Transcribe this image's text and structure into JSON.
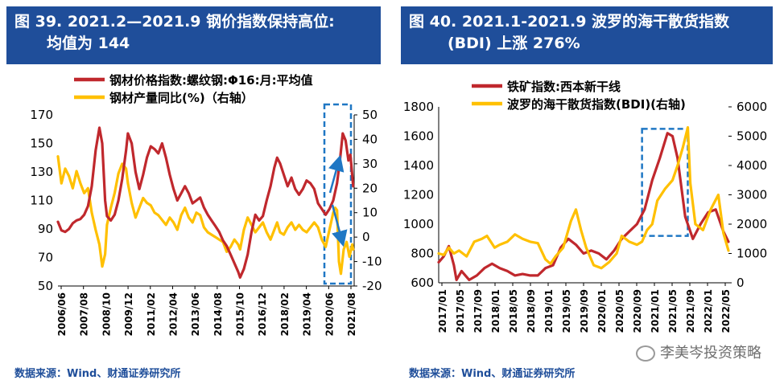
{
  "left": {
    "title_line1": "图 39. 2021.2—2021.9  钢价指数保持高位:",
    "title_line2": "均值为 144",
    "source": "数据来源：Wind、财通证券研究所",
    "legend": [
      "钢材价格指数:螺纹钢:Φ16:月:平均值",
      "钢材产量同比(%)（右轴）"
    ]
  },
  "right": {
    "title_line1": "图 40. 2021.1-2021.9  波罗的海干散货指数",
    "title_line2": "(BDI)  上涨 276%",
    "source": "数据来源：Wind、财通证券研究所",
    "legend": [
      "铁矿指数:西本新干线",
      "波罗的海干散货指数(BDI)(右轴)"
    ]
  },
  "watermark": "李美岑投资策略",
  "colors": {
    "title_bg": "#1f4e9a",
    "red": "#c0282d",
    "yellow": "#ffc000",
    "dash": "#1f77c4"
  },
  "chart_data": [
    {
      "type": "line",
      "title": "图 39. 2021.2—2021.9  钢价指数保持高位: 均值为 144",
      "x_tick_labels": [
        "2006/06",
        "2007/08",
        "2008/10",
        "2009/12",
        "2011/02",
        "2012/04",
        "2013/06",
        "2014/08",
        "2015/10",
        "2016/12",
        "2018/02",
        "2019/04",
        "2020/06",
        "2021/08"
      ],
      "x_range": [
        2006.42,
        2022.0
      ],
      "ylim_left": [
        50,
        170
      ],
      "yticks_left": [
        50,
        70,
        90,
        110,
        130,
        150,
        170
      ],
      "ylim_right": [
        -20,
        50
      ],
      "yticks_right": [
        -20,
        -10,
        0,
        10,
        20,
        30,
        40,
        50
      ],
      "series": [
        {
          "name": "钢材价格指数:螺纹钢:Φ16:月:平均值",
          "axis": "left",
          "x": [
            2006.42,
            2006.6,
            2006.8,
            2007.0,
            2007.2,
            2007.4,
            2007.6,
            2007.8,
            2008.0,
            2008.2,
            2008.4,
            2008.6,
            2008.75,
            2008.9,
            2009.0,
            2009.2,
            2009.4,
            2009.6,
            2009.8,
            2010.0,
            2010.1,
            2010.3,
            2010.5,
            2010.7,
            2010.9,
            2011.1,
            2011.3,
            2011.5,
            2011.7,
            2011.9,
            2012.1,
            2012.3,
            2012.5,
            2012.7,
            2012.9,
            2013.1,
            2013.3,
            2013.5,
            2013.7,
            2013.9,
            2014.1,
            2014.3,
            2014.5,
            2014.7,
            2014.9,
            2015.1,
            2015.3,
            2015.5,
            2015.7,
            2015.9,
            2016.0,
            2016.2,
            2016.4,
            2016.6,
            2016.8,
            2017.0,
            2017.2,
            2017.4,
            2017.6,
            2017.8,
            2017.95,
            2018.1,
            2018.3,
            2018.5,
            2018.7,
            2018.9,
            2019.1,
            2019.3,
            2019.5,
            2019.7,
            2019.9,
            2020.1,
            2020.3,
            2020.5,
            2020.7,
            2020.9,
            2021.1,
            2021.25,
            2021.4,
            2021.55,
            2021.7,
            2021.8,
            2021.95
          ],
          "values": [
            95,
            89,
            88,
            90,
            94,
            96,
            97,
            100,
            106,
            120,
            145,
            161,
            150,
            110,
            99,
            96,
            100,
            110,
            125,
            145,
            157,
            150,
            130,
            118,
            128,
            140,
            148,
            146,
            143,
            150,
            140,
            128,
            118,
            110,
            115,
            120,
            115,
            108,
            110,
            112,
            105,
            100,
            96,
            92,
            88,
            82,
            78,
            72,
            66,
            60,
            56,
            62,
            72,
            88,
            100,
            96,
            99,
            110,
            120,
            133,
            140,
            136,
            128,
            120,
            126,
            118,
            114,
            118,
            124,
            122,
            118,
            108,
            104,
            100,
            104,
            110,
            122,
            138,
            157,
            152,
            138,
            142,
            120
          ]
        },
        {
          "name": "钢材产量同比(%)（右轴）",
          "axis": "right",
          "x": [
            2006.42,
            2006.6,
            2006.8,
            2007.0,
            2007.2,
            2007.4,
            2007.6,
            2007.8,
            2008.0,
            2008.2,
            2008.4,
            2008.6,
            2008.75,
            2008.9,
            2009.0,
            2009.2,
            2009.4,
            2009.6,
            2009.8,
            2010.0,
            2010.1,
            2010.3,
            2010.5,
            2010.7,
            2010.9,
            2011.1,
            2011.3,
            2011.5,
            2011.7,
            2011.9,
            2012.1,
            2012.3,
            2012.5,
            2012.7,
            2012.9,
            2013.1,
            2013.3,
            2013.5,
            2013.7,
            2013.9,
            2014.1,
            2014.3,
            2014.5,
            2014.7,
            2014.9,
            2015.1,
            2015.3,
            2015.5,
            2015.7,
            2015.9,
            2016.0,
            2016.2,
            2016.4,
            2016.6,
            2016.8,
            2017.0,
            2017.2,
            2017.4,
            2017.6,
            2017.8,
            2017.95,
            2018.1,
            2018.3,
            2018.5,
            2018.7,
            2018.9,
            2019.1,
            2019.3,
            2019.5,
            2019.7,
            2019.9,
            2020.1,
            2020.3,
            2020.5,
            2020.7,
            2020.9,
            2021.0,
            2021.1,
            2021.2,
            2021.3,
            2021.45,
            2021.6,
            2021.75,
            2021.9,
            2021.95
          ],
          "values": [
            33,
            22,
            28,
            25,
            20,
            27,
            22,
            18,
            20,
            10,
            3,
            -3,
            -12,
            -7,
            5,
            12,
            18,
            26,
            30,
            28,
            22,
            14,
            8,
            12,
            16,
            14,
            13,
            10,
            9,
            7,
            5,
            8,
            6,
            3,
            9,
            12,
            8,
            6,
            10,
            9,
            4,
            2,
            1,
            0,
            -1,
            -2,
            -6,
            -4,
            -1,
            -3,
            -5,
            3,
            8,
            5,
            2,
            4,
            6,
            2,
            -1,
            3,
            6,
            2,
            1,
            4,
            6,
            3,
            5,
            3,
            2,
            4,
            6,
            4,
            -1,
            -4,
            3,
            10,
            12,
            11,
            -10,
            -15,
            -5,
            -2,
            -8,
            -3,
            -5
          ]
        }
      ]
    },
    {
      "type": "line",
      "title": "图 40. 2021.1-2021.9  波罗的海干散货指数 (BDI)  上涨 276%",
      "x_tick_labels": [
        "2017/01",
        "2017/05",
        "2017/09",
        "2018/01",
        "2018/05",
        "2018/09",
        "2019/01",
        "2019/05",
        "2019/09",
        "2020/01",
        "2020/05",
        "2020/09",
        "2021/01",
        "2021/05",
        "2021/09",
        "2022/01",
        "2022/05"
      ],
      "x_range": [
        2017.0,
        2022.7
      ],
      "ylim_left": [
        600,
        1800
      ],
      "yticks_left": [
        600,
        800,
        1000,
        1200,
        1400,
        1600,
        1800
      ],
      "ylim_right": [
        0,
        6000
      ],
      "yticks_right": [
        0,
        1000,
        2000,
        3000,
        4000,
        5000,
        6000
      ],
      "series": [
        {
          "name": "铁矿指数:西本新干线",
          "axis": "left",
          "x": [
            2017.0,
            2017.1,
            2017.2,
            2017.3,
            2017.35,
            2017.45,
            2017.6,
            2017.75,
            2017.9,
            2018.05,
            2018.2,
            2018.35,
            2018.5,
            2018.65,
            2018.8,
            2018.95,
            2019.1,
            2019.25,
            2019.4,
            2019.55,
            2019.7,
            2019.85,
            2020.0,
            2020.15,
            2020.3,
            2020.45,
            2020.6,
            2020.75,
            2020.9,
            2021.05,
            2021.2,
            2021.35,
            2021.5,
            2021.6,
            2021.7,
            2021.85,
            2022.0,
            2022.15,
            2022.3,
            2022.45,
            2022.6,
            2022.7
          ],
          "values": [
            740,
            780,
            850,
            720,
            620,
            680,
            620,
            650,
            700,
            730,
            700,
            680,
            650,
            660,
            650,
            650,
            700,
            720,
            840,
            900,
            860,
            800,
            820,
            800,
            760,
            820,
            900,
            950,
            1000,
            1100,
            1300,
            1450,
            1620,
            1600,
            1450,
            1050,
            900,
            1000,
            1080,
            1100,
            950,
            880
          ]
        },
        {
          "name": "波罗的海干散货指数(BDI)(右轴)",
          "axis": "right",
          "x": [
            2017.0,
            2017.1,
            2017.2,
            2017.3,
            2017.4,
            2017.55,
            2017.7,
            2017.85,
            2017.95,
            2018.1,
            2018.2,
            2018.35,
            2018.5,
            2018.65,
            2018.8,
            2018.95,
            2019.1,
            2019.2,
            2019.3,
            2019.45,
            2019.6,
            2019.7,
            2019.8,
            2019.9,
            2020.05,
            2020.2,
            2020.35,
            2020.5,
            2020.6,
            2020.75,
            2020.9,
            2021.0,
            2021.1,
            2021.2,
            2021.3,
            2021.45,
            2021.6,
            2021.7,
            2021.8,
            2021.9,
            2021.95,
            2022.05,
            2022.2,
            2022.35,
            2022.5,
            2022.6,
            2022.7
          ],
          "values": [
            1000,
            950,
            1200,
            1000,
            1100,
            900,
            1400,
            1500,
            1600,
            1200,
            1300,
            1400,
            1650,
            1500,
            1400,
            1350,
            800,
            650,
            900,
            1200,
            2100,
            2500,
            1800,
            1200,
            600,
            500,
            700,
            1000,
            1600,
            1400,
            1300,
            1400,
            1800,
            2000,
            2800,
            3200,
            3500,
            4000,
            4600,
            5300,
            3400,
            2000,
            1800,
            2500,
            3000,
            1700,
            1100
          ]
        }
      ],
      "highlight": {
        "x_range": [
          2021.0,
          2021.9
        ],
        "y_range_left": [
          920,
          1650
        ]
      }
    }
  ]
}
